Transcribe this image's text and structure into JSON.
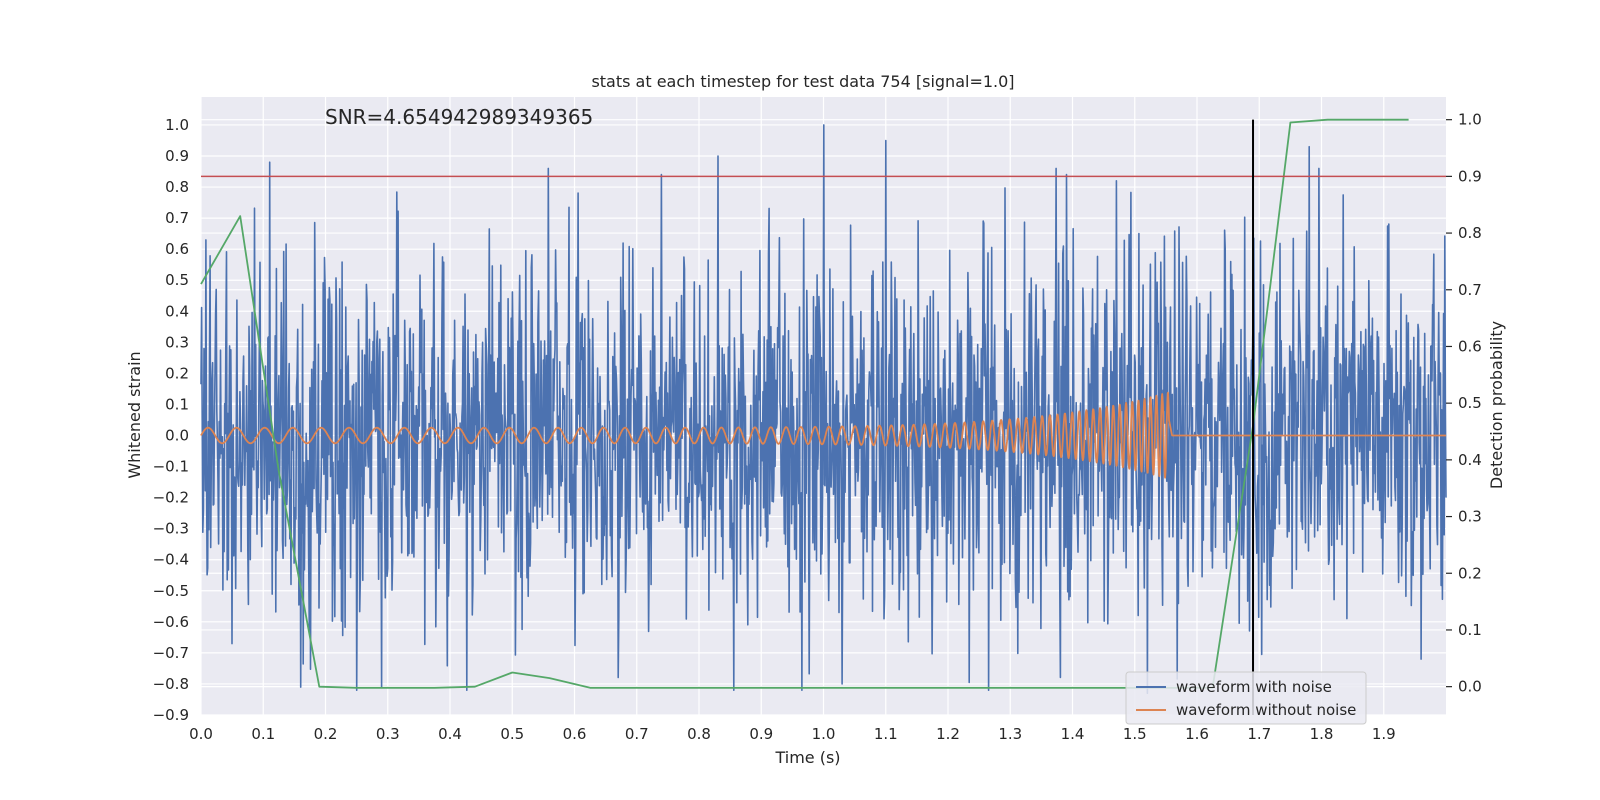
{
  "chart_data": {
    "type": "line",
    "title": "stats at each timestep for test data 754 [signal=1.0]",
    "annotation": "SNR=4.654942989349365",
    "xlabel": "Time (s)",
    "ylabel_left": "Whitened strain",
    "ylabel_right": "Detection probability",
    "xlim": [
      0.0,
      2.0
    ],
    "ylim_left": [
      -0.9,
      1.09
    ],
    "ylim_right": [
      -0.05,
      1.04
    ],
    "x_ticks": [
      "0.0",
      "0.1",
      "0.2",
      "0.3",
      "0.4",
      "0.5",
      "0.6",
      "0.7",
      "0.8",
      "0.9",
      "1.0",
      "1.1",
      "1.2",
      "1.3",
      "1.4",
      "1.5",
      "1.6",
      "1.7",
      "1.8",
      "1.9"
    ],
    "y_left_ticks": [
      "1.0",
      "0.9",
      "0.8",
      "0.7",
      "0.6",
      "0.5",
      "0.4",
      "0.3",
      "0.2",
      "0.1",
      "0.0",
      "−0.1",
      "−0.2",
      "−0.3",
      "−0.4",
      "−0.5",
      "−0.6",
      "−0.7",
      "−0.8",
      "−0.9"
    ],
    "y_right_ticks": [
      "1.0",
      "0.9",
      "0.8",
      "0.7",
      "0.6",
      "0.5",
      "0.4",
      "0.3",
      "0.2",
      "0.1",
      "0.0"
    ],
    "threshold_line": {
      "axis": "right",
      "value": 0.9,
      "color": "#c44e52"
    },
    "vertical_marker": {
      "x": 1.69,
      "color": "#000000"
    },
    "series": [
      {
        "name": "waveform with noise",
        "axis": "left",
        "color": "#4c72b0",
        "kind": "noise",
        "amplitude_std": 0.3,
        "x_range": [
          0.0,
          2.0
        ],
        "peaks": [
          {
            "x": 0.11,
            "y": 0.88
          },
          {
            "x": 1.0,
            "y": 1.0
          },
          {
            "x": 1.1,
            "y": 0.95
          },
          {
            "x": 1.78,
            "y": 0.93
          },
          {
            "x": 0.83,
            "y": 0.9
          },
          {
            "x": 0.74,
            "y": 0.84
          },
          {
            "x": 1.39,
            "y": 0.84
          },
          {
            "x": 1.47,
            "y": 0.82
          },
          {
            "x": 1.03,
            "y": -0.8
          },
          {
            "x": 0.16,
            "y": -0.81
          },
          {
            "x": 0.29,
            "y": -0.81
          },
          {
            "x": 1.52,
            "y": -0.83
          },
          {
            "x": 0.05,
            "y": -0.67
          },
          {
            "x": 1.96,
            "y": -0.72
          }
        ]
      },
      {
        "name": "waveform without noise",
        "axis": "left",
        "color": "#dd8452",
        "kind": "chirp",
        "x_range": [
          0.0,
          1.555
        ],
        "amplitude_start": 0.025,
        "amplitude_end": 0.14,
        "frequency_start": 22,
        "frequency_end": 110
      },
      {
        "name": "detection probability",
        "axis": "right",
        "color": "#55a868",
        "kind": "line",
        "x": [
          0.0,
          0.063,
          0.125,
          0.19,
          0.25,
          0.31,
          0.375,
          0.44,
          0.5,
          0.56,
          0.625,
          0.69,
          0.75,
          0.81,
          0.875,
          0.94,
          1.0,
          1.06,
          1.125,
          1.19,
          1.25,
          1.31,
          1.375,
          1.44,
          1.5,
          1.56,
          1.625,
          1.69,
          1.75,
          1.81,
          1.875,
          1.94
        ],
        "y": [
          0.71,
          0.83,
          0.38,
          0.0,
          -0.002,
          -0.002,
          -0.002,
          0.0,
          0.025,
          0.015,
          -0.002,
          -0.002,
          -0.002,
          -0.002,
          -0.002,
          -0.002,
          -0.002,
          -0.002,
          -0.002,
          -0.002,
          -0.002,
          -0.002,
          -0.002,
          -0.002,
          -0.002,
          -0.002,
          -0.002,
          0.46,
          0.995,
          1.0,
          1.0,
          1.0
        ]
      }
    ],
    "legend": {
      "position": "lower-right",
      "entries": [
        {
          "label": "waveform with noise",
          "color": "#4c72b0"
        },
        {
          "label": "waveform without noise",
          "color": "#dd8452"
        }
      ]
    },
    "style": {
      "plot_background": "#eaeaf2",
      "grid_color": "#ffffff"
    }
  }
}
